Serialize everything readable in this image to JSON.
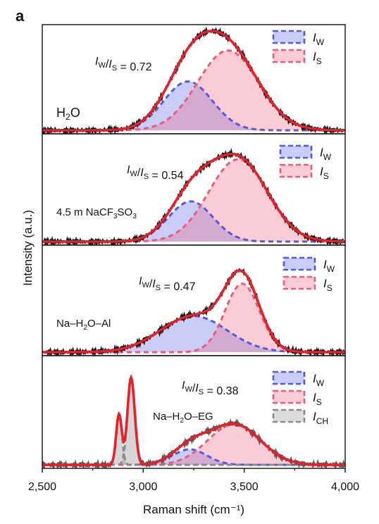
{
  "panel_label": "a",
  "chart_data": {
    "type": "line",
    "kind": "stacked Raman spectra with Gaussian fits",
    "xlabel": "Raman shift (cm⁻¹)",
    "ylabel": "Intensity (a.u.)",
    "xlim": [
      2500,
      4000
    ],
    "xticks": [
      2500,
      3000,
      3500,
      4000
    ],
    "xtick_labels": [
      "2,500",
      "3,000",
      "3,500",
      "4,000"
    ],
    "colors": {
      "measured": "#111111",
      "fit": "#e8202a",
      "I_W": "#4d5be6",
      "I_S": "#ef5a78",
      "I_CH": "#8a8a8a"
    },
    "panels": [
      {
        "label_parts": [
          "H",
          "2",
          "O"
        ],
        "ratio_label": "0.72",
        "ylim": [
          0,
          1
        ],
        "legend": [
          "I_W",
          "I_S"
        ],
        "components": [
          {
            "name": "I_W",
            "center": 3222,
            "sigma": 120,
            "amp": 0.52
          },
          {
            "name": "I_S",
            "center": 3420,
            "sigma": 150,
            "amp": 0.85
          }
        ]
      },
      {
        "label_parts": [
          "4.5 m NaCF",
          "3",
          "SO",
          "3"
        ],
        "ratio_label": "0.54",
        "ylim": [
          0,
          1
        ],
        "legend": [
          "I_W",
          "I_S"
        ],
        "components": [
          {
            "name": "I_W",
            "center": 3235,
            "sigma": 110,
            "amp": 0.42
          },
          {
            "name": "I_S",
            "center": 3470,
            "sigma": 145,
            "amp": 0.86
          }
        ]
      },
      {
        "label_parts": [
          "Na–H",
          "2",
          "O–Al"
        ],
        "ratio_label": "0.47",
        "ylim": [
          0,
          1
        ],
        "legend": [
          "I_W",
          "I_S"
        ],
        "components": [
          {
            "name": "I_W",
            "center": 3250,
            "sigma": 165,
            "amp": 0.38
          },
          {
            "name": "I_S",
            "center": 3490,
            "sigma": 85,
            "amp": 0.72
          }
        ]
      },
      {
        "label_parts": [
          "Na–H",
          "2",
          "O–EG"
        ],
        "ratio_label": "0.38",
        "ylim": [
          0,
          1
        ],
        "legend": [
          "I_W",
          "I_S",
          "I_CH"
        ],
        "components": [
          {
            "name": "I_W",
            "center": 3230,
            "sigma": 85,
            "amp": 0.16
          },
          {
            "name": "I_S",
            "center": 3450,
            "sigma": 130,
            "amp": 0.42
          },
          {
            "name": "I_CH",
            "center": 2880,
            "sigma": 14,
            "amp": 0.52
          },
          {
            "name": "I_CH",
            "center": 2940,
            "sigma": 18,
            "amp": 0.9
          }
        ]
      }
    ]
  }
}
